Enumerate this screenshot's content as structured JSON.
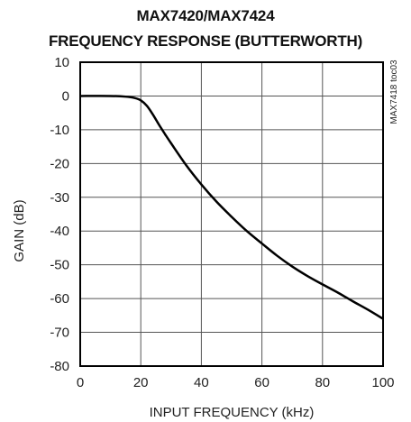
{
  "chart_data": {
    "type": "line",
    "title": [
      "MAX7420/MAX7424",
      "FREQUENCY RESPONSE (BUTTERWORTH)"
    ],
    "xlabel": "INPUT FREQUENCY (kHz)",
    "ylabel": "GAIN (dB)",
    "xlim": [
      0,
      100
    ],
    "ylim": [
      -80,
      10
    ],
    "xticks": [
      0,
      20,
      40,
      60,
      80,
      100
    ],
    "yticks": [
      10,
      0,
      -10,
      -20,
      -30,
      -40,
      -50,
      -60,
      -70,
      -80
    ],
    "grid": true,
    "annotation": "MAX7418 toc03",
    "series": [
      {
        "x": [
          0,
          10,
          15,
          18,
          20,
          22,
          24,
          26,
          28,
          30,
          35,
          40,
          45,
          50,
          55,
          60,
          65,
          70,
          75,
          80,
          85,
          90,
          95,
          100
        ],
        "y": [
          0,
          0,
          -0.2,
          -0.6,
          -1.3,
          -2.9,
          -5.5,
          -8.5,
          -11.3,
          -14.0,
          -20.5,
          -26.2,
          -31.3,
          -35.8,
          -40.0,
          -43.7,
          -47.3,
          -50.5,
          -53.3,
          -55.8,
          -58.2,
          -60.8,
          -63.3,
          -66.0
        ],
        "color": "#000000"
      }
    ]
  }
}
